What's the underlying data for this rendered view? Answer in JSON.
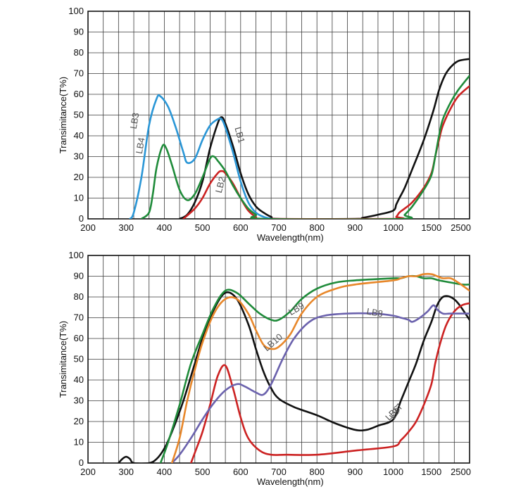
{
  "chart_data": [
    {
      "type": "line",
      "xlabel": "Wavelength(nm)",
      "ylabel": "Transimitance(T%)",
      "x_tick_labels": [
        "200",
        "300",
        "400",
        "500",
        "600",
        "700",
        "800",
        "900",
        "1000",
        "1500",
        "2500"
      ],
      "y_tick_labels": [
        "0",
        "10",
        "20",
        "30",
        "40",
        "50",
        "60",
        "70",
        "80",
        "90",
        "100"
      ],
      "ylim": [
        0,
        100
      ],
      "grid": true,
      "series": [
        {
          "name": "LB1",
          "color": "#111111",
          "points": [
            [
              440,
              0
            ],
            [
              460,
              2
            ],
            [
              480,
              8
            ],
            [
              500,
              18
            ],
            [
              520,
              34
            ],
            [
              540,
              46
            ],
            [
              550,
              49
            ],
            [
              560,
              46
            ],
            [
              580,
              35
            ],
            [
              600,
              22
            ],
            [
              620,
              12
            ],
            [
              640,
              6
            ],
            [
              660,
              3
            ],
            [
              680,
              1
            ],
            [
              700,
              0
            ],
            [
              900,
              0
            ],
            [
              920,
              0.5
            ],
            [
              960,
              2
            ],
            [
              1000,
              4
            ],
            [
              1040,
              7
            ],
            [
              1080,
              10
            ],
            [
              1150,
              15
            ],
            [
              1250,
              24
            ],
            [
              1400,
              38
            ],
            [
              1550,
              52
            ],
            [
              1700,
              62
            ],
            [
              1850,
              69
            ],
            [
              2000,
              73
            ],
            [
              2200,
              76
            ],
            [
              2500,
              77
            ]
          ]
        },
        {
          "name": "LB2",
          "color": "#cc2222",
          "points": [
            [
              450,
              0
            ],
            [
              480,
              5
            ],
            [
              500,
              10
            ],
            [
              520,
              17
            ],
            [
              540,
              22
            ],
            [
              550,
              23
            ],
            [
              560,
              22
            ],
            [
              580,
              17
            ],
            [
              600,
              10
            ],
            [
              620,
              4
            ],
            [
              640,
              1
            ],
            [
              660,
              0
            ],
            [
              1000,
              0
            ],
            [
              1040,
              1
            ],
            [
              1080,
              3
            ],
            [
              1150,
              5
            ],
            [
              1250,
              8
            ],
            [
              1400,
              15
            ],
            [
              1500,
              22
            ],
            [
              1600,
              30
            ],
            [
              1700,
              38
            ],
            [
              1800,
              45
            ],
            [
              2000,
              53
            ],
            [
              2200,
              59
            ],
            [
              2500,
              64
            ]
          ]
        },
        {
          "name": "LB3",
          "color": "#2a96d6",
          "points": [
            [
              310,
              0
            ],
            [
              320,
              3
            ],
            [
              340,
              20
            ],
            [
              360,
              45
            ],
            [
              380,
              58
            ],
            [
              390,
              59
            ],
            [
              410,
              54
            ],
            [
              430,
              44
            ],
            [
              450,
              32
            ],
            [
              460,
              27
            ],
            [
              480,
              29
            ],
            [
              500,
              38
            ],
            [
              520,
              45
            ],
            [
              540,
              48
            ],
            [
              550,
              48
            ],
            [
              560,
              44
            ],
            [
              580,
              32
            ],
            [
              600,
              18
            ],
            [
              620,
              8
            ],
            [
              640,
              3
            ],
            [
              660,
              1
            ],
            [
              680,
              0
            ]
          ]
        },
        {
          "name": "LB4",
          "color": "#1f8b3a",
          "points": [
            [
              340,
              0
            ],
            [
              360,
              3
            ],
            [
              370,
              12
            ],
            [
              380,
              25
            ],
            [
              395,
              35
            ],
            [
              405,
              34
            ],
            [
              420,
              26
            ],
            [
              440,
              14
            ],
            [
              460,
              9
            ],
            [
              480,
              12
            ],
            [
              500,
              20
            ],
            [
              520,
              29
            ],
            [
              530,
              30
            ],
            [
              540,
              28
            ],
            [
              560,
              23
            ],
            [
              580,
              16
            ],
            [
              600,
              10
            ],
            [
              620,
              5
            ],
            [
              640,
              2
            ],
            [
              660,
              0
            ],
            [
              1100,
              0
            ],
            [
              1150,
              2
            ],
            [
              1250,
              6
            ],
            [
              1400,
              14
            ],
            [
              1500,
              21
            ],
            [
              1600,
              30
            ],
            [
              1700,
              40
            ],
            [
              1800,
              48
            ],
            [
              2000,
              56
            ],
            [
              2200,
              62
            ],
            [
              2500,
              69
            ]
          ]
        }
      ]
    },
    {
      "type": "line",
      "xlabel": "Wavelength(nm)",
      "ylabel": "Transimitance(T%)",
      "x_tick_labels": [
        "200",
        "300",
        "400",
        "500",
        "600",
        "700",
        "800",
        "900",
        "1000",
        "1500",
        "2500"
      ],
      "y_tick_labels": [
        "0",
        "10",
        "20",
        "30",
        "40",
        "50",
        "60",
        "70",
        "80",
        "90",
        "100"
      ],
      "ylim": [
        0,
        100
      ],
      "grid": true,
      "series": [
        {
          "name": "LB6",
          "color": "#111111",
          "points": [
            [
              280,
              0
            ],
            [
              290,
              2
            ],
            [
              300,
              3
            ],
            [
              310,
              2
            ],
            [
              320,
              0
            ],
            [
              360,
              0
            ],
            [
              380,
              2
            ],
            [
              400,
              7
            ],
            [
              420,
              15
            ],
            [
              450,
              30
            ],
            [
              480,
              48
            ],
            [
              500,
              60
            ],
            [
              530,
              74
            ],
            [
              560,
              82
            ],
            [
              590,
              79
            ],
            [
              620,
              67
            ],
            [
              640,
              55
            ],
            [
              660,
              44
            ],
            [
              680,
              36
            ],
            [
              700,
              31
            ],
            [
              740,
              27
            ],
            [
              800,
              23
            ],
            [
              850,
              19
            ],
            [
              900,
              16
            ],
            [
              930,
              16
            ],
            [
              960,
              18
            ],
            [
              1000,
              21
            ],
            [
              1100,
              30
            ],
            [
              1200,
              39
            ],
            [
              1300,
              48
            ],
            [
              1400,
              59
            ],
            [
              1500,
              68
            ],
            [
              1650,
              76
            ],
            [
              1800,
              80
            ],
            [
              2000,
              80
            ],
            [
              2200,
              77
            ],
            [
              2500,
              69
            ]
          ]
        },
        {
          "name": "LB7",
          "color": "#cc2222",
          "points": [
            [
              470,
              0
            ],
            [
              480,
              5
            ],
            [
              500,
              15
            ],
            [
              520,
              28
            ],
            [
              540,
              42
            ],
            [
              560,
              47
            ],
            [
              580,
              36
            ],
            [
              600,
              22
            ],
            [
              620,
              12
            ],
            [
              650,
              6
            ],
            [
              680,
              4
            ],
            [
              720,
              4
            ],
            [
              800,
              4
            ],
            [
              900,
              6
            ],
            [
              1000,
              8
            ],
            [
              1100,
              11
            ],
            [
              1200,
              15
            ],
            [
              1300,
              20
            ],
            [
              1400,
              28
            ],
            [
              1500,
              38
            ],
            [
              1600,
              48
            ],
            [
              1750,
              59
            ],
            [
              1900,
              67
            ],
            [
              2100,
              73
            ],
            [
              2300,
              76
            ],
            [
              2500,
              77
            ]
          ]
        },
        {
          "name": "LB8",
          "color": "#6b62ad",
          "points": [
            [
              420,
              0
            ],
            [
              440,
              4
            ],
            [
              470,
              12
            ],
            [
              500,
              21
            ],
            [
              530,
              29
            ],
            [
              560,
              35
            ],
            [
              590,
              38
            ],
            [
              610,
              37
            ],
            [
              640,
              34
            ],
            [
              660,
              33
            ],
            [
              680,
              38
            ],
            [
              710,
              50
            ],
            [
              740,
              60
            ],
            [
              780,
              68
            ],
            [
              820,
              71
            ],
            [
              880,
              72
            ],
            [
              950,
              72
            ],
            [
              1000,
              71
            ],
            [
              1100,
              70
            ],
            [
              1200,
              69
            ],
            [
              1250,
              68
            ],
            [
              1350,
              70
            ],
            [
              1450,
              73
            ],
            [
              1550,
              76
            ],
            [
              1650,
              74
            ],
            [
              1800,
              72
            ],
            [
              2000,
              72
            ],
            [
              2500,
              72
            ]
          ]
        },
        {
          "name": "LB9",
          "color": "#1f8b3a",
          "points": [
            [
              390,
              0
            ],
            [
              410,
              10
            ],
            [
              440,
              28
            ],
            [
              470,
              48
            ],
            [
              500,
              62
            ],
            [
              530,
              75
            ],
            [
              560,
              83
            ],
            [
              590,
              82
            ],
            [
              620,
              77
            ],
            [
              650,
              72
            ],
            [
              680,
              69
            ],
            [
              700,
              69
            ],
            [
              730,
              73
            ],
            [
              760,
              79
            ],
            [
              800,
              84
            ],
            [
              850,
              87
            ],
            [
              900,
              88
            ],
            [
              1000,
              89
            ],
            [
              1100,
              89
            ],
            [
              1200,
              90
            ],
            [
              1300,
              90
            ],
            [
              1400,
              89
            ],
            [
              1500,
              89
            ],
            [
              1700,
              88
            ],
            [
              2000,
              87
            ],
            [
              2300,
              86
            ],
            [
              2500,
              86
            ]
          ]
        },
        {
          "name": "LB10",
          "color": "#e8872a",
          "points": [
            [
              420,
              0
            ],
            [
              440,
              12
            ],
            [
              460,
              30
            ],
            [
              480,
              45
            ],
            [
              500,
              58
            ],
            [
              530,
              72
            ],
            [
              560,
              79
            ],
            [
              590,
              79
            ],
            [
              620,
              72
            ],
            [
              640,
              64
            ],
            [
              660,
              57
            ],
            [
              680,
              55
            ],
            [
              700,
              56
            ],
            [
              730,
              62
            ],
            [
              760,
              72
            ],
            [
              800,
              80
            ],
            [
              850,
              84
            ],
            [
              900,
              86
            ],
            [
              1000,
              88
            ],
            [
              1100,
              89
            ],
            [
              1200,
              90
            ],
            [
              1300,
              90
            ],
            [
              1400,
              91
            ],
            [
              1500,
              91
            ],
            [
              1650,
              90
            ],
            [
              1800,
              89
            ],
            [
              2000,
              89
            ],
            [
              2200,
              87
            ],
            [
              2500,
              83
            ]
          ]
        }
      ]
    }
  ]
}
